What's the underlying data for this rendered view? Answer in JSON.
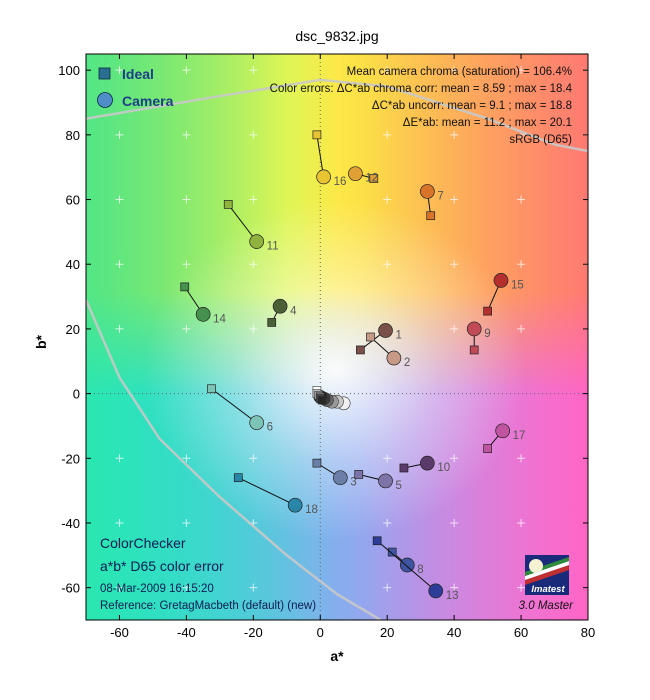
{
  "chart_data": {
    "type": "scatter",
    "title": "dsc_9832.jpg",
    "xlabel": "a*",
    "ylabel": "b*",
    "xlim": [
      -70,
      80
    ],
    "ylim": [
      -70,
      105
    ],
    "xticks": [
      -60,
      -40,
      -20,
      0,
      20,
      40,
      60,
      80
    ],
    "yticks": [
      -60,
      -40,
      -20,
      0,
      20,
      40,
      60,
      80,
      100
    ],
    "grid": true,
    "legend": {
      "placement": "top-left",
      "entries": [
        {
          "label": "Ideal",
          "marker": "square",
          "color": "#2a6f8f"
        },
        {
          "label": "Camera",
          "marker": "circle",
          "color": "#4f8ec8"
        }
      ]
    },
    "info_lines": [
      "Mean camera chroma (saturation) = 106.4%",
      "Color errors: ΔC*ab chroma corr:  mean = 8.59 ;  max = 18.4",
      "ΔC*ab uncorr:  mean = 9.1 ;  max = 18.8",
      "ΔE*ab:  mean = 11.2 ;  max = 20.1",
      "sRGB (D65)"
    ],
    "bottom_left_lines": {
      "line1": "ColorChecker",
      "line2": "a*b* D65 color error",
      "line3": "08-Mar-2009 16:15:20",
      "line4": "Reference: GretagMacbeth (default) (new)"
    },
    "logo_text": "Imatest",
    "version_text": "3.0  Master",
    "gamut_outline": {
      "upper": [
        [
          -70,
          85
        ],
        [
          -30,
          92
        ],
        [
          0,
          97
        ],
        [
          20,
          95
        ],
        [
          50,
          85
        ],
        [
          70,
          77
        ],
        [
          80,
          75
        ]
      ],
      "lower": [
        [
          -70,
          29
        ],
        [
          -60,
          5
        ],
        [
          -48,
          -14
        ],
        [
          -30,
          -32
        ],
        [
          -10,
          -50
        ],
        [
          5,
          -62
        ],
        [
          18,
          -70
        ]
      ]
    },
    "patches": [
      {
        "num": "1",
        "ideal": [
          12,
          13.5
        ],
        "camera": [
          19.5,
          19.5
        ],
        "color": "#7a5048"
      },
      {
        "num": "2",
        "ideal": [
          15,
          17.5
        ],
        "camera": [
          22,
          11
        ],
        "color": "#c79a86"
      },
      {
        "num": "3",
        "ideal": [
          -1,
          -21.5
        ],
        "camera": [
          6,
          -26
        ],
        "color": "#6a7fa8"
      },
      {
        "num": "4",
        "ideal": [
          -14.5,
          22
        ],
        "camera": [
          -12,
          27
        ],
        "color": "#4c6038"
      },
      {
        "num": "5",
        "ideal": [
          11.5,
          -25
        ],
        "camera": [
          19.5,
          -27
        ],
        "color": "#7d73a6"
      },
      {
        "num": "6",
        "ideal": [
          -32.5,
          1.5
        ],
        "camera": [
          -19,
          -9
        ],
        "color": "#7cc4b6"
      },
      {
        "num": "7",
        "ideal": [
          33,
          55
        ],
        "camera": [
          32,
          62.5
        ],
        "color": "#d8742a"
      },
      {
        "num": "8",
        "ideal": [
          21.5,
          -49
        ],
        "camera": [
          26,
          -53
        ],
        "color": "#3f55a3"
      },
      {
        "num": "9",
        "ideal": [
          46,
          13.5
        ],
        "camera": [
          46,
          20
        ],
        "color": "#c04a56"
      },
      {
        "num": "10",
        "ideal": [
          25,
          -23
        ],
        "camera": [
          32,
          -21.5
        ],
        "color": "#5a3a6a"
      },
      {
        "num": "11",
        "ideal": [
          -27.5,
          58.5
        ],
        "camera": [
          -19,
          47
        ],
        "color": "#90b23e"
      },
      {
        "num": "12",
        "ideal": [
          16,
          66.5
        ],
        "camera": [
          10.5,
          68
        ],
        "color": "#e0a034"
      },
      {
        "num": "13",
        "ideal": [
          17,
          -45.5
        ],
        "camera": [
          34.5,
          -61
        ],
        "color": "#2c3c98"
      },
      {
        "num": "14",
        "ideal": [
          -40.5,
          33
        ],
        "camera": [
          -35,
          24.5
        ],
        "color": "#46914e"
      },
      {
        "num": "15",
        "ideal": [
          50,
          25.5
        ],
        "camera": [
          54,
          35
        ],
        "color": "#b4302e"
      },
      {
        "num": "16",
        "ideal": [
          -1,
          80
        ],
        "camera": [
          1,
          67
        ],
        "color": "#e8c432"
      },
      {
        "num": "17",
        "ideal": [
          50,
          -17
        ],
        "camera": [
          54.5,
          -11.5
        ],
        "color": "#c054a0"
      },
      {
        "num": "18",
        "ideal": [
          -24.5,
          -26
        ],
        "camera": [
          -7.5,
          -34.5
        ],
        "color": "#2a86a8"
      }
    ],
    "neutrals": {
      "ideal": [
        [
          -1,
          1
        ],
        [
          -1,
          0
        ],
        [
          -0.5,
          -0.5
        ],
        [
          0,
          -1
        ],
        [
          0,
          -1.5
        ],
        [
          0.5,
          -2
        ]
      ],
      "camera": [
        [
          0,
          -1
        ],
        [
          1,
          -1.5
        ],
        [
          2,
          -2
        ],
        [
          3.5,
          -2.5
        ],
        [
          5,
          -2.5
        ],
        [
          7,
          -3
        ]
      ],
      "ideal_colors": [
        "#ffffff",
        "#c8c8c8",
        "#a0a0a0",
        "#787878",
        "#505050",
        "#282828"
      ],
      "camera_colors": [
        "#181818",
        "#3a3a3a",
        "#666666",
        "#999999",
        "#c8c8c8",
        "#f0f0f0"
      ]
    }
  }
}
